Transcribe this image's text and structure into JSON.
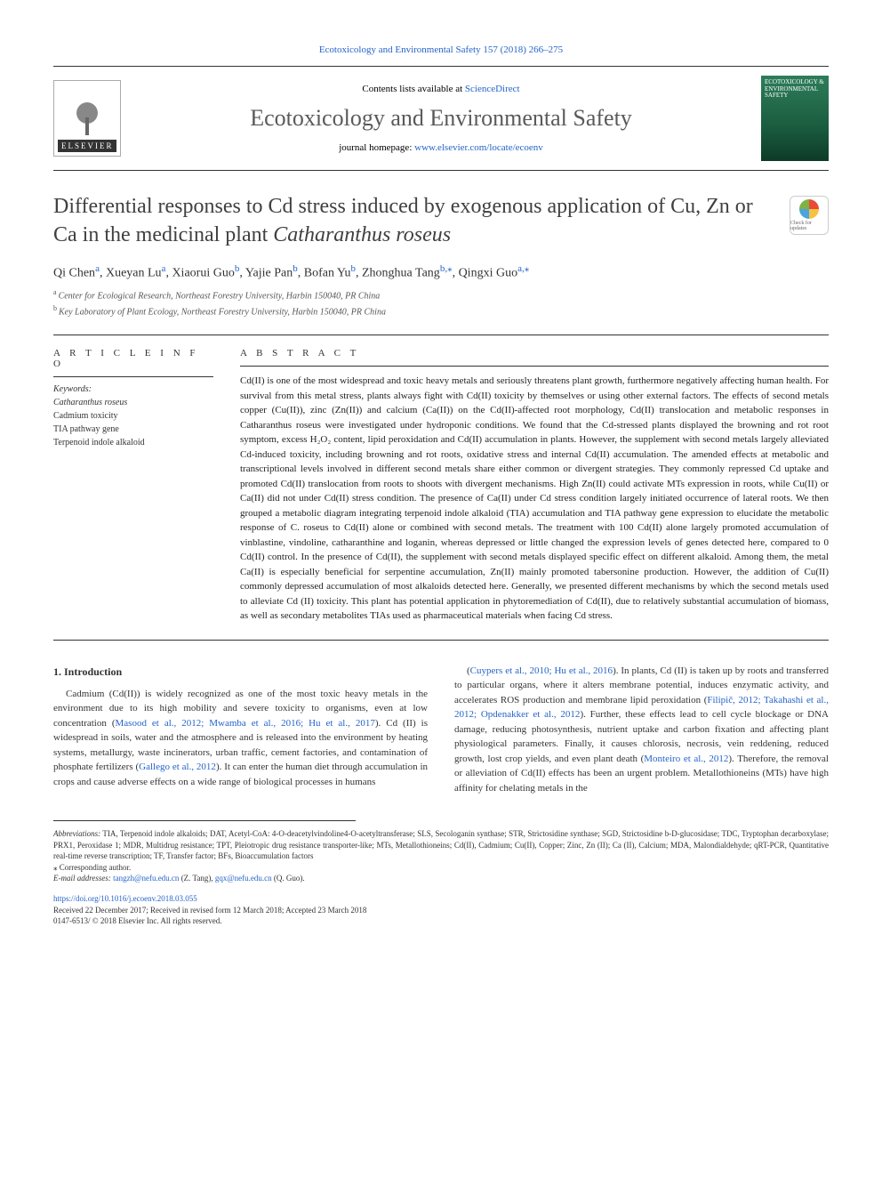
{
  "top_link": "Ecotoxicology and Environmental Safety 157 (2018) 266–275",
  "header": {
    "contents_prefix": "Contents lists available at ",
    "contents_link": "ScienceDirect",
    "journal": "Ecotoxicology and Environmental Safety",
    "homepage_prefix": "journal homepage: ",
    "homepage_url": "www.elsevier.com/locate/ecoenv",
    "elsevier": "ELSEVIER",
    "cover_title": "ECOTOXICOLOGY & ENVIRONMENTAL SAFETY"
  },
  "title": {
    "part1": "Differential responses to Cd stress induced by exogenous application of Cu, Zn or Ca in the medicinal plant ",
    "italic": "Catharanthus roseus"
  },
  "crossmark": "Check for updates",
  "authors": [
    {
      "name": "Qi Chen",
      "aff": "a"
    },
    {
      "name": "Xueyan Lu",
      "aff": "a"
    },
    {
      "name": "Xiaorui Guo",
      "aff": "b"
    },
    {
      "name": "Yajie Pan",
      "aff": "b"
    },
    {
      "name": "Bofan Yu",
      "aff": "b"
    },
    {
      "name": "Zhonghua Tang",
      "aff": "b",
      "corr": true
    },
    {
      "name": "Qingxi Guo",
      "aff": "a",
      "corr": true
    }
  ],
  "affiliations": [
    {
      "sup": "a",
      "text": "Center for Ecological Research, Northeast Forestry University, Harbin 150040, PR China"
    },
    {
      "sup": "b",
      "text": "Key Laboratory of Plant Ecology, Northeast Forestry University, Harbin 150040, PR China"
    }
  ],
  "article_info_head": "A R T I C L E  I N F O",
  "abstract_head": "A B S T R A C T",
  "keywords_label": "Keywords:",
  "keywords": [
    "Catharanthus roseus",
    "Cadmium toxicity",
    "TIA pathway gene",
    "Terpenoid indole alkaloid"
  ],
  "abstract": "Cd(II) is one of the most widespread and toxic heavy metals and seriously threatens plant growth, furthermore negatively affecting human health. For survival from this metal stress, plants always fight with Cd(II) toxicity by themselves or using other external factors. The effects of second metals copper (Cu(II)), zinc (Zn(II)) and calcium (Ca(II)) on the Cd(II)-affected root morphology, Cd(II) translocation and metabolic responses in Catharanthus roseus were investigated under hydroponic conditions. We found that the Cd-stressed plants displayed the browning and rot root symptom, excess H₂O₂ content, lipid peroxidation and Cd(II) accumulation in plants. However, the supplement with second metals largely alleviated Cd-induced toxicity, including browning and rot roots, oxidative stress and internal Cd(II) accumulation. The amended effects at metabolic and transcriptional levels involved in different second metals share either common or divergent strategies. They commonly repressed Cd uptake and promoted Cd(II) translocation from roots to shoots with divergent mechanisms. High Zn(II) could activate MTs expression in roots, while Cu(II) or Ca(II) did not under Cd(II) stress condition. The presence of Ca(II) under Cd stress condition largely initiated occurrence of lateral roots. We then grouped a metabolic diagram integrating terpenoid indole alkaloid (TIA) accumulation and TIA pathway gene expression to elucidate the metabolic response of C. roseus to Cd(II) alone or combined with second metals. The treatment with 100 Cd(II) alone largely promoted accumulation of vinblastine, vindoline, catharanthine and loganin, whereas depressed or little changed the expression levels of genes detected here, compared to 0 Cd(II) control. In the presence of Cd(II), the supplement with second metals displayed specific effect on different alkaloid. Among them, the metal Ca(II) is especially beneficial for serpentine accumulation, Zn(II) mainly promoted tabersonine production. However, the addition of Cu(II) commonly depressed accumulation of most alkaloids detected here. Generally, we presented different mechanisms by which the second metals used to alleviate Cd (II) toxicity. This plant has potential application in phytoremediation of Cd(II), due to relatively substantial accumulation of biomass, as well as secondary metabolites TIAs used as pharmaceutical materials when facing Cd stress.",
  "intro": {
    "heading": "1. Introduction",
    "col1_p1_a": "Cadmium (Cd(II)) is widely recognized as one of the most toxic heavy metals in the environment due to its high mobility and severe toxicity to organisms, even at low concentration (",
    "col1_cite1": "Masood et al., 2012; Mwamba et al., 2016; Hu et al., 2017",
    "col1_p1_b": "). Cd (II) is widespread in soils, water and the atmosphere and is released into the environment by heating systems, metallurgy, waste incinerators, urban traffic, cement factories, and contamination of phosphate fertilizers (",
    "col1_cite2": "Gallego et al., 2012",
    "col1_p1_c": "). It can enter the human diet through accumulation in crops and cause adverse effects on a wide range of biological processes in humans",
    "col2_p1_a": "(",
    "col2_cite1": "Cuypers et al., 2010; Hu et al., 2016",
    "col2_p1_b": "). In plants, Cd (II) is taken up by roots and transferred to particular organs, where it alters membrane potential, induces enzymatic activity, and accelerates ROS production and membrane lipid peroxidation (",
    "col2_cite2": "Filipič, 2012; Takahashi et al., 2012; Opdenakker et al., 2012",
    "col2_p1_c": "). Further, these effects lead to cell cycle blockage or DNA damage, reducing photosynthesis, nutrient uptake and carbon fixation and affecting plant physiological parameters. Finally, it causes chlorosis, necrosis, vein reddening, reduced growth, lost crop yields, and even plant death (",
    "col2_cite3": "Monteiro et al., 2012",
    "col2_p1_d": "). Therefore, the removal or alleviation of Cd(II) effects has been an urgent problem. Metallothioneins (MTs) have high affinity for chelating metals in the"
  },
  "footnotes": {
    "abbrev_label": "Abbreviations:",
    "abbrev": " TIA, Terpenoid indole alkaloids; DAT, Acetyl-CoA: 4-O-deacetylvindoline4-O-acetyltransferase; SLS, Secologanin synthase; STR, Strictosidine synthase; SGD, Strictosidine b-D-glucosidase; TDC, Tryptophan decarboxylase; PRX1, Peroxidase 1; MDR, Multidrug resistance; TPT, Pleiotropic drug resistance transporter-like; MTs, Metallothioneins; Cd(II), Cadmium; Cu(II), Copper; Zinc, Zn (II); Ca (II), Calcium; MDA, Malondialdehyde; qRT-PCR, Quantitative real-time reverse transcription; TF, Transfer factor; BFs, Bioaccumulation factors",
    "corr": "⁎ Corresponding author.",
    "email_label": "E-mail addresses: ",
    "email1": "tangzh@nefu.edu.cn",
    "email1_who": " (Z. Tang), ",
    "email2": "gqx@nefu.edu.cn",
    "email2_who": " (Q. Guo)."
  },
  "doi": {
    "url": "https://doi.org/10.1016/j.ecoenv.2018.03.055",
    "history": "Received 22 December 2017; Received in revised form 12 March 2018; Accepted 23 March 2018",
    "issn": "0147-6513/ © 2018 Elsevier Inc. All rights reserved."
  },
  "colors": {
    "link": "#2563c9",
    "text": "#333333",
    "journal_heading": "#5a5a5a"
  }
}
